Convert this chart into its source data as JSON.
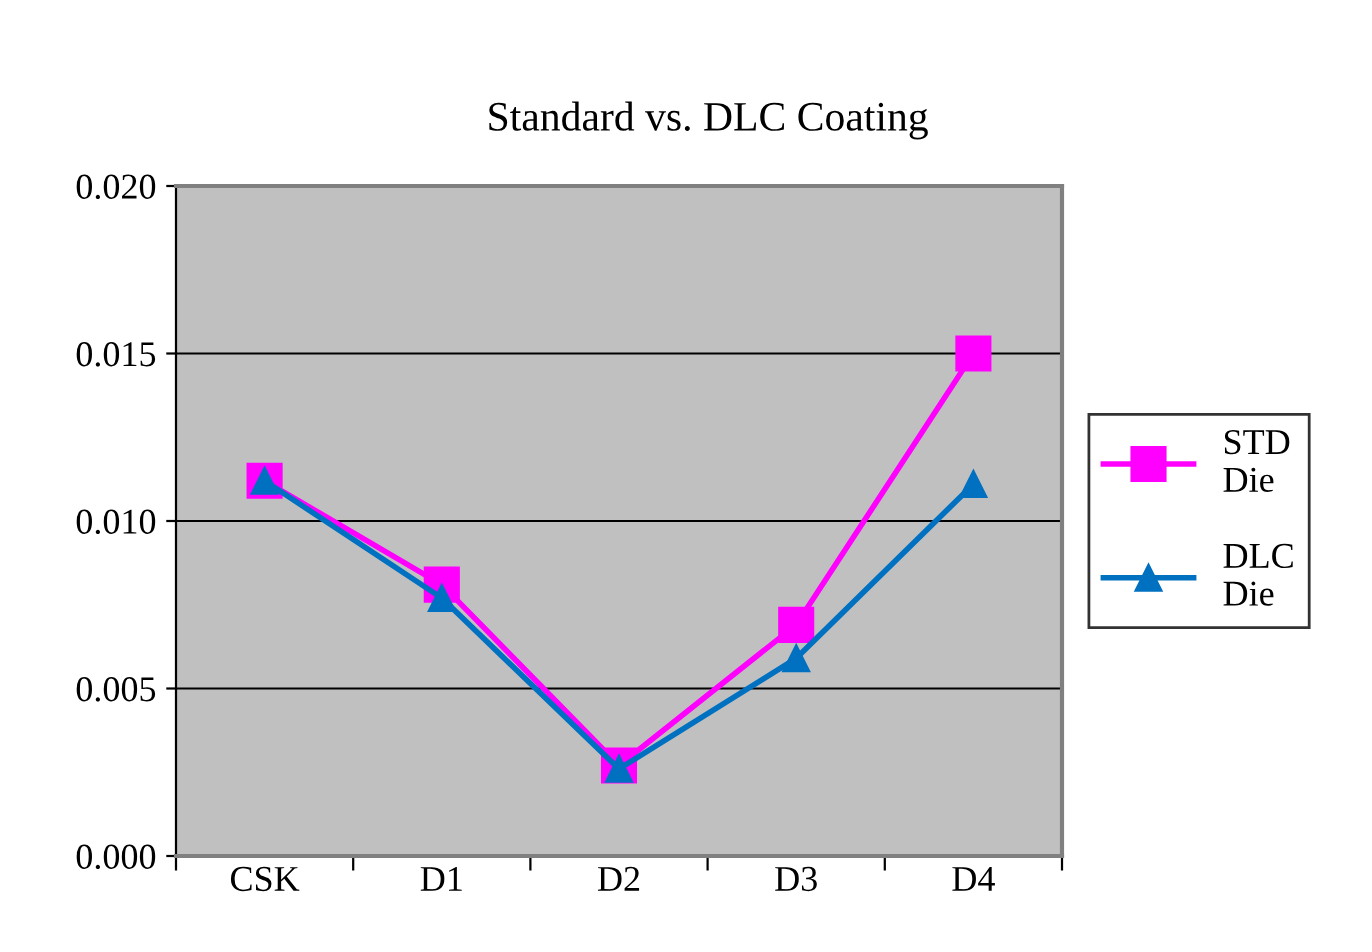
{
  "chart_data": {
    "type": "line",
    "title": "Standard vs. DLC Coating",
    "categories": [
      "CSK",
      "D1",
      "D2",
      "D3",
      "D4"
    ],
    "series": [
      {
        "name": "STD Die",
        "color": "#ff00ff",
        "marker": "square",
        "values": [
          0.0112,
          0.0081,
          0.0027,
          0.0069,
          0.015
        ]
      },
      {
        "name": "DLC Die",
        "color": "#0070c0",
        "marker": "triangle",
        "values": [
          0.0112,
          0.0077,
          0.0026,
          0.0059,
          0.0111
        ]
      }
    ],
    "ylim": [
      0,
      0.02
    ],
    "yticks": [
      {
        "value": 0,
        "label": "0.000"
      },
      {
        "value": 0.005,
        "label": "0.005"
      },
      {
        "value": 0.01,
        "label": "0.010"
      },
      {
        "value": 0.015,
        "label": "0.015"
      },
      {
        "value": 0.02,
        "label": "0.020"
      }
    ],
    "grid": "y",
    "legend": "right",
    "line_style": "solid"
  }
}
